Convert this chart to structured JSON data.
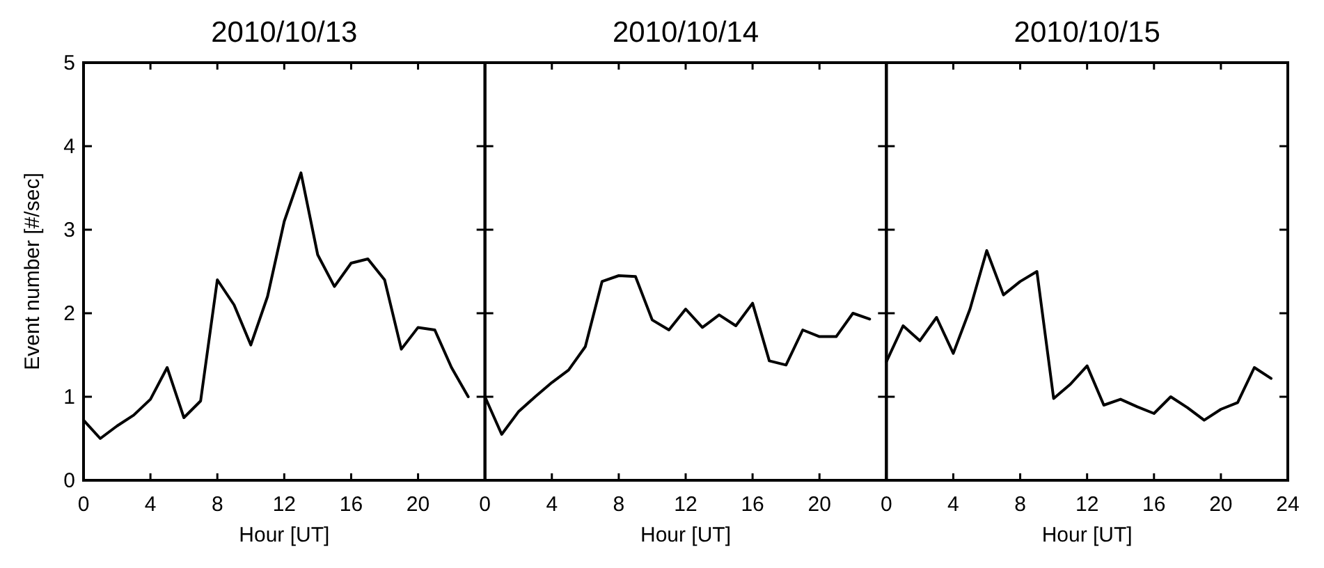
{
  "chart_data": [
    {
      "type": "line",
      "title": "2010/10/13",
      "xlabel": "Hour [UT]",
      "ylabel": "Event number [#/sec]",
      "x": [
        0,
        1,
        2,
        3,
        4,
        5,
        6,
        7,
        8,
        9,
        10,
        11,
        12,
        13,
        14,
        15,
        16,
        17,
        18,
        19,
        20,
        21,
        22,
        23
      ],
      "xlim": [
        0,
        24
      ],
      "xticks": [
        0,
        4,
        8,
        12,
        16,
        20
      ],
      "ylim": [
        0,
        5
      ],
      "yticks": [
        0,
        1,
        2,
        3,
        4,
        5
      ],
      "color": "#000000",
      "grid": false,
      "values": [
        0.72,
        0.5,
        0.65,
        0.78,
        0.97,
        1.35,
        0.75,
        0.95,
        2.4,
        2.1,
        1.62,
        2.2,
        3.1,
        3.68,
        2.7,
        2.32,
        2.6,
        2.65,
        2.4,
        1.57,
        1.83,
        1.8,
        1.35,
        1.0
      ]
    },
    {
      "type": "line",
      "title": "2010/10/14",
      "xlabel": "Hour [UT]",
      "x": [
        0,
        1,
        2,
        3,
        4,
        5,
        6,
        7,
        8,
        9,
        10,
        11,
        12,
        13,
        14,
        15,
        16,
        17,
        18,
        19,
        20,
        21,
        22,
        23
      ],
      "xlim": [
        0,
        24
      ],
      "xticks": [
        0,
        4,
        8,
        12,
        16,
        20
      ],
      "ylim": [
        0,
        5
      ],
      "yticks": [
        0,
        1,
        2,
        3,
        4,
        5
      ],
      "tick_labels": "x",
      "color": "#000000",
      "grid": false,
      "values": [
        1.0,
        0.55,
        0.82,
        1.0,
        1.17,
        1.32,
        1.6,
        2.38,
        2.45,
        2.44,
        1.92,
        1.8,
        2.05,
        1.83,
        1.98,
        1.85,
        2.12,
        1.43,
        1.38,
        1.8,
        1.72,
        1.72,
        2.0,
        1.93
      ]
    },
    {
      "type": "line",
      "title": "2010/10/15",
      "xlabel": "Hour [UT]",
      "x": [
        0,
        1,
        2,
        3,
        4,
        5,
        6,
        7,
        8,
        9,
        10,
        11,
        12,
        13,
        14,
        15,
        16,
        17,
        18,
        19,
        20,
        21,
        22,
        23
      ],
      "xlim": [
        0,
        24
      ],
      "xticks": [
        0,
        4,
        8,
        12,
        16,
        20,
        24
      ],
      "ylim": [
        0,
        5
      ],
      "yticks": [
        0,
        1,
        2,
        3,
        4,
        5
      ],
      "tick_labels": "x",
      "color": "#000000",
      "grid": false,
      "values": [
        1.42,
        1.85,
        1.67,
        1.95,
        1.52,
        2.05,
        2.75,
        2.22,
        2.38,
        2.5,
        0.98,
        1.15,
        1.37,
        0.9,
        0.97,
        0.88,
        0.8,
        1.0,
        0.87,
        0.72,
        0.85,
        0.93,
        1.35,
        1.22
      ]
    }
  ]
}
